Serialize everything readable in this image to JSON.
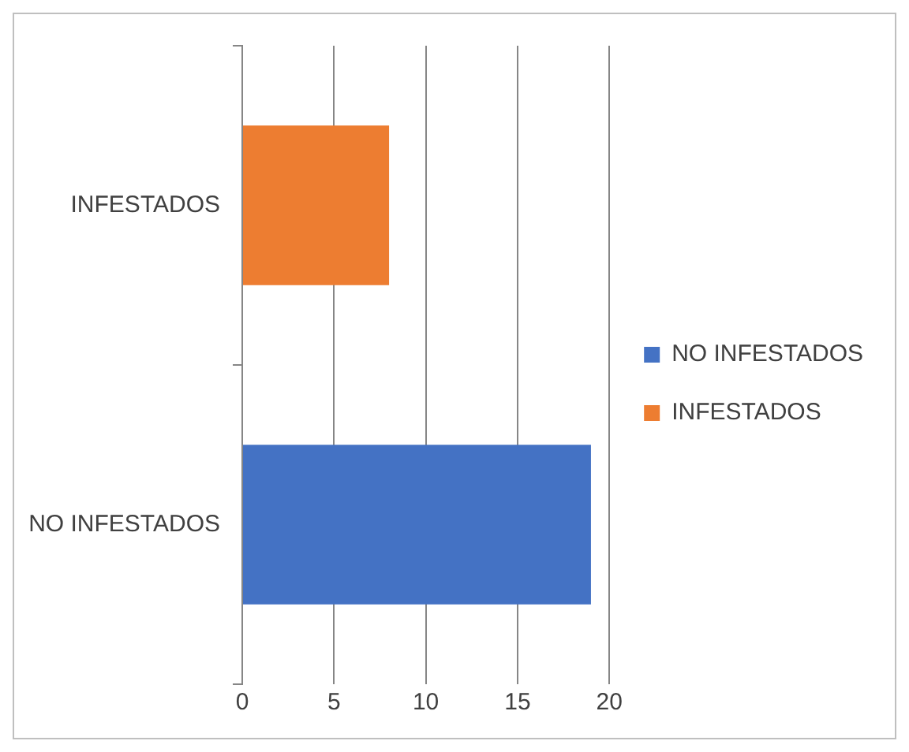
{
  "chart_data": {
    "type": "bar",
    "orientation": "horizontal",
    "categories": [
      "INFESTADOS",
      "NO INFESTADOS"
    ],
    "series": [
      {
        "name": "NO INFESTADOS",
        "color": "#4472c4",
        "values": [
          null,
          19
        ]
      },
      {
        "name": "INFESTADOS",
        "color": "#ed7d31",
        "values": [
          8,
          null
        ]
      }
    ],
    "xlim": [
      0,
      20
    ],
    "xticks": [
      0,
      5,
      10,
      15,
      20
    ],
    "grid": "x",
    "legend": "right"
  }
}
